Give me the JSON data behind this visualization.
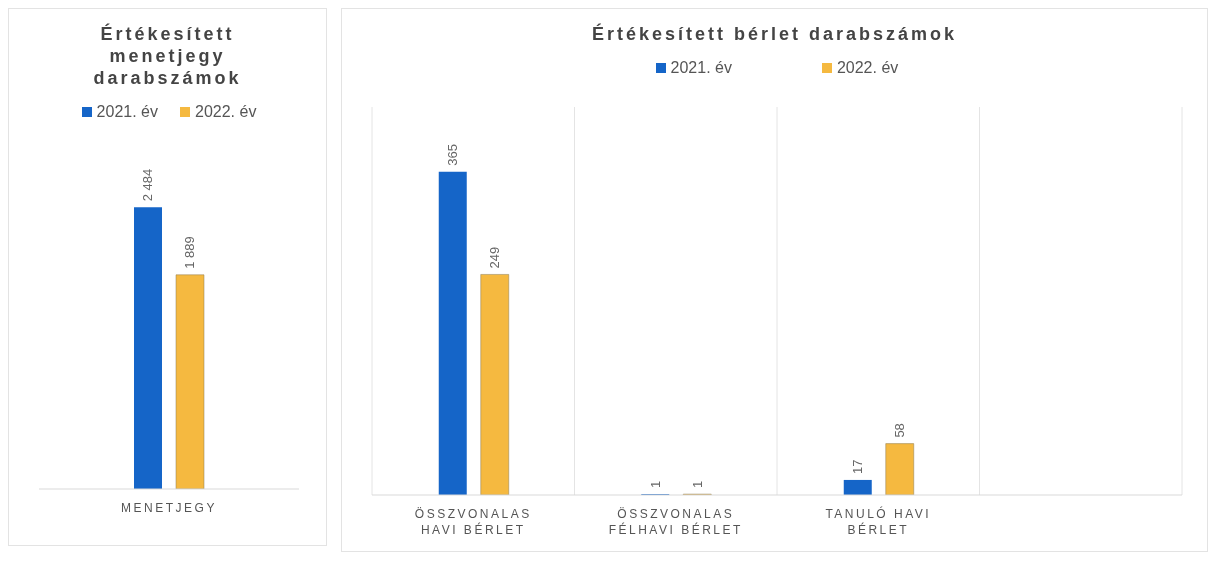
{
  "chart_data": [
    {
      "type": "bar",
      "title": "Értékesített menetjegy darabszámok",
      "categories": [
        "MENETJEGY"
      ],
      "tick_labels": "x",
      "data_labels": true,
      "legend": "top",
      "series": [
        {
          "name": "2021. év",
          "color": "#1565c8",
          "values": [
            2484
          ]
        },
        {
          "name": "2022. év",
          "color": "#f5b940",
          "values": [
            1889
          ]
        }
      ]
    },
    {
      "type": "bar",
      "title": "Értékesített bérlet darabszámok",
      "categories": [
        "ÖSSZVONALAS HAVI BÉRLET",
        "ÖSSZVONALAS FÉLHAVI BÉRLET",
        "TANULÓ HAVI BÉRLET",
        null
      ],
      "tick_labels": "x",
      "data_labels": true,
      "legend": "top",
      "grid": "x",
      "series": [
        {
          "name": "2021. év",
          "color": "#1565c8",
          "values": [
            365,
            1,
            17,
            null
          ]
        },
        {
          "name": "2022. év",
          "color": "#f5b940",
          "values": [
            249,
            1,
            58,
            null
          ]
        }
      ]
    }
  ]
}
